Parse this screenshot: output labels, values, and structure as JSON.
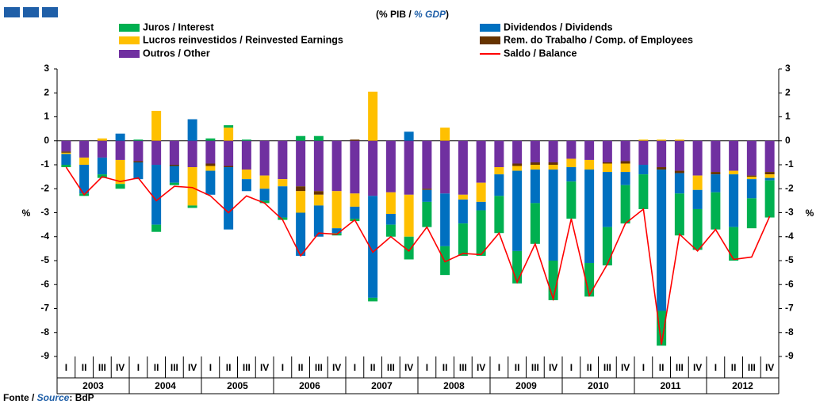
{
  "chart_data": {
    "type": "bar",
    "title_parts": [
      "(% PIB / ",
      "% GDP",
      ")"
    ],
    "source_parts": [
      "Fonte / ",
      "Source",
      ": BdP"
    ],
    "ylabel": "%",
    "categories": [
      "I",
      "II",
      "III",
      "IV",
      "I",
      "II",
      "III",
      "IV",
      "I",
      "II",
      "III",
      "IV",
      "I",
      "II",
      "III",
      "IV",
      "I",
      "II",
      "III",
      "IV",
      "I",
      "II",
      "III",
      "IV",
      "I",
      "II",
      "III",
      "IV",
      "I",
      "II",
      "III",
      "IV",
      "I",
      "II",
      "III",
      "IV",
      "I",
      "II",
      "III",
      "IV"
    ],
    "years": [
      "2003",
      "2004",
      "2005",
      "2006",
      "2007",
      "2008",
      "2009",
      "2010",
      "2011",
      "2012"
    ],
    "ylim": [
      -9,
      3
    ],
    "yticks": [
      -9,
      -8,
      -7,
      -6,
      -5,
      -4,
      -3,
      -2,
      -1,
      0,
      1,
      2,
      3
    ],
    "series": [
      {
        "name": "Juros / Interest",
        "color": "#00b050",
        "values": [
          -0.1,
          -0.1,
          -0.15,
          -0.2,
          0.05,
          -0.3,
          -0.1,
          -0.1,
          0.1,
          0.1,
          0.05,
          -0.1,
          -0.1,
          0.2,
          0.2,
          -0.1,
          -0.1,
          -0.15,
          -0.5,
          -0.95,
          -1.05,
          -1.2,
          -1.35,
          -1.9,
          -1.55,
          -1.35,
          -1.7,
          -1.65,
          -1.55,
          -1.4,
          -1.6,
          -1.6,
          -1.45,
          -1.45,
          -1.75,
          -1.7,
          -1.55,
          -1.4,
          -1.25,
          -1.55
        ]
      },
      {
        "name": "Dividendos / Dividends",
        "color": "#0070c0",
        "values": [
          -0.45,
          -1.2,
          -0.7,
          0.3,
          -0.7,
          -2.5,
          -0.7,
          0.9,
          -1.0,
          -2.6,
          -0.5,
          -0.5,
          -1.3,
          -1.8,
          -1.3,
          -0.2,
          -0.5,
          -4.25,
          -0.45,
          0.38,
          -0.5,
          -2.2,
          -1.0,
          -0.35,
          -0.9,
          -3.35,
          -1.4,
          -3.8,
          -0.6,
          -3.9,
          -2.3,
          -0.55,
          -0.4,
          -5.9,
          -0.85,
          -0.8,
          -0.75,
          -2.2,
          -0.8,
          -0.1
        ]
      },
      {
        "name": "Lucros reinvestidos / Reinvested Earnings",
        "color": "#ffc000",
        "values": [
          -0.05,
          -0.3,
          0.1,
          -1.0,
          0,
          1.25,
          0,
          -1.6,
          -0.2,
          0.55,
          -0.4,
          -0.55,
          -0.3,
          -0.9,
          -0.45,
          -1.55,
          -0.55,
          2.05,
          -0.9,
          -1.75,
          0,
          0.55,
          -0.2,
          -0.8,
          -0.3,
          -0.2,
          -0.2,
          -0.2,
          -0.35,
          -0.4,
          -0.35,
          -0.35,
          0.05,
          0.05,
          0.05,
          -0.6,
          0,
          -0.15,
          -0.1,
          -0.15
        ]
      },
      {
        "name": "Rem. do Trabalho / Comp. of Employees",
        "color": "#663300",
        "values": [
          -0.05,
          0,
          0,
          0,
          -0.05,
          0,
          -0.05,
          0,
          -0.1,
          -0.05,
          0,
          0,
          0,
          -0.2,
          -0.15,
          0,
          0.05,
          0,
          0,
          0,
          -0.05,
          0,
          0,
          0,
          0,
          -0.1,
          -0.1,
          -0.1,
          0,
          0,
          -0.05,
          -0.1,
          0,
          -0.1,
          -0.1,
          0,
          -0.1,
          0,
          -0.05,
          -0.1
        ]
      },
      {
        "name": "Outros / Other",
        "color": "#7030a0",
        "values": [
          -0.45,
          -0.7,
          -0.7,
          -0.8,
          -0.85,
          -1.0,
          -1.0,
          -1.1,
          -0.95,
          -1.05,
          -1.2,
          -1.45,
          -1.6,
          -1.9,
          -2.1,
          -2.1,
          -2.2,
          -2.3,
          -2.15,
          -2.25,
          -2.0,
          -2.2,
          -2.25,
          -1.75,
          -1.1,
          -0.95,
          -0.9,
          -0.9,
          -0.75,
          -0.8,
          -0.9,
          -0.85,
          -1.0,
          -1.1,
          -1.25,
          -1.45,
          -1.3,
          -1.25,
          -1.45,
          -1.3
        ]
      },
      {
        "name": "Saldo / Balance",
        "color": "#ff0000",
        "type": "line",
        "values": [
          -1.1,
          -2.25,
          -1.5,
          -1.7,
          -1.55,
          -2.5,
          -1.9,
          -1.95,
          -2.3,
          -3.0,
          -2.3,
          -2.6,
          -3.3,
          -4.8,
          -3.85,
          -3.9,
          -3.3,
          -4.65,
          -4.0,
          -4.6,
          -3.6,
          -5.05,
          -4.7,
          -4.75,
          -3.85,
          -5.9,
          -4.3,
          -6.6,
          -3.25,
          -6.45,
          -5.15,
          -3.45,
          -2.85,
          -8.5,
          -3.9,
          -4.6,
          -3.7,
          -4.95,
          -4.85,
          -3.15
        ]
      }
    ]
  }
}
